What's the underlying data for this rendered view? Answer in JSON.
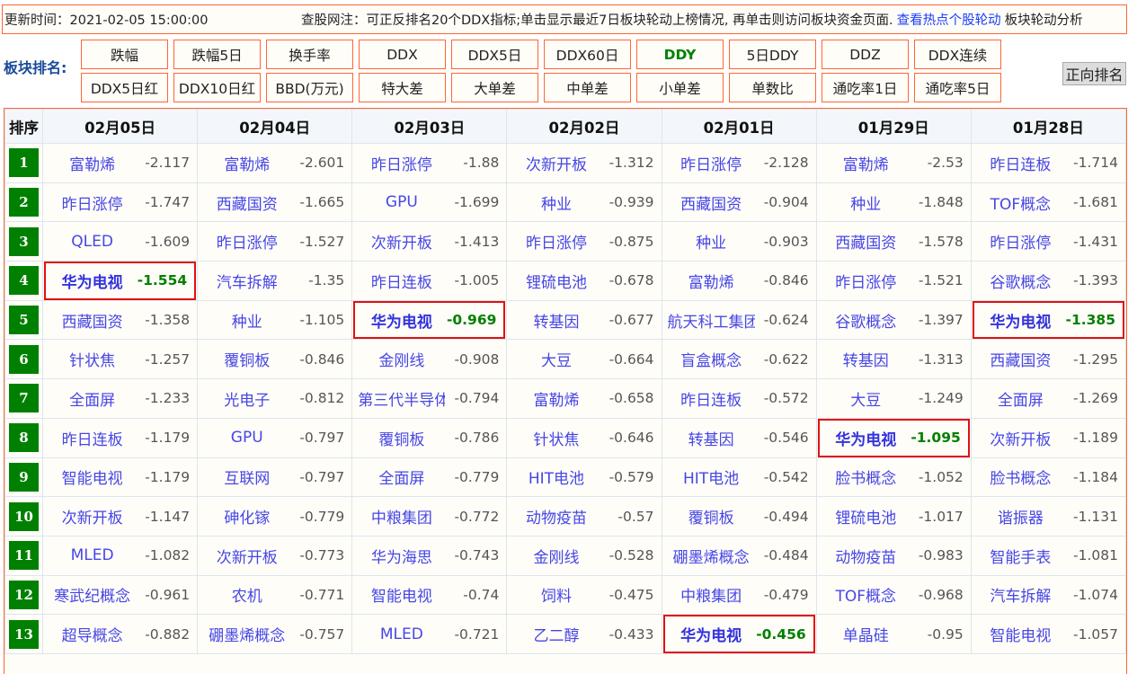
{
  "topbar": {
    "update_time": "更新时间：2021-02-05 15:00:00",
    "note": "查股网注：可正反排名20个DDX指标;单击显示最近7日板块轮动上榜情况, 再单击则访问板块资金页面.",
    "link": "查看热点个股轮动",
    "tail": "板块轮动分析"
  },
  "ranking_label": "板块排名:",
  "buttons": [
    "跌幅",
    "跌幅5日",
    "换手率",
    "DDX",
    "DDX5日",
    "DDX60日",
    "DDY",
    "5日DDY",
    "DDZ",
    "DDX连续",
    "DDX5日红",
    "DDX10日红",
    "BBD(万元)",
    "特大差",
    "大单差",
    "中单差",
    "小单差",
    "单数比",
    "通吃率1日",
    "通吃率5日"
  ],
  "active_button": "DDY",
  "reverse_button": "正向排名",
  "table": {
    "rank_header": "排序",
    "dates": [
      "02月05日",
      "02月04日",
      "02月03日",
      "02月02日",
      "02月01日",
      "01月29日",
      "01月28日"
    ],
    "highlight": "华为电视",
    "rows": [
      [
        [
          "富勒烯",
          "-2.117"
        ],
        [
          "富勒烯",
          "-2.601"
        ],
        [
          "昨日涨停",
          "-1.88"
        ],
        [
          "次新开板",
          "-1.312"
        ],
        [
          "昨日涨停",
          "-2.128"
        ],
        [
          "富勒烯",
          "-2.53"
        ],
        [
          "昨日连板",
          "-1.714"
        ]
      ],
      [
        [
          "昨日涨停",
          "-1.747"
        ],
        [
          "西藏国资",
          "-1.665"
        ],
        [
          "GPU",
          "-1.699"
        ],
        [
          "种业",
          "-0.939"
        ],
        [
          "西藏国资",
          "-0.904"
        ],
        [
          "种业",
          "-1.848"
        ],
        [
          "TOF概念",
          "-1.681"
        ]
      ],
      [
        [
          "QLED",
          "-1.609"
        ],
        [
          "昨日涨停",
          "-1.527"
        ],
        [
          "次新开板",
          "-1.413"
        ],
        [
          "昨日涨停",
          "-0.875"
        ],
        [
          "种业",
          "-0.903"
        ],
        [
          "西藏国资",
          "-1.578"
        ],
        [
          "昨日涨停",
          "-1.431"
        ]
      ],
      [
        [
          "华为电视",
          "-1.554"
        ],
        [
          "汽车拆解",
          "-1.35"
        ],
        [
          "昨日连板",
          "-1.005"
        ],
        [
          "锂硫电池",
          "-0.678"
        ],
        [
          "富勒烯",
          "-0.846"
        ],
        [
          "昨日涨停",
          "-1.521"
        ],
        [
          "谷歌概念",
          "-1.393"
        ]
      ],
      [
        [
          "西藏国资",
          "-1.358"
        ],
        [
          "种业",
          "-1.105"
        ],
        [
          "华为电视",
          "-0.969"
        ],
        [
          "转基因",
          "-0.677"
        ],
        [
          "航天科工集团",
          "-0.624"
        ],
        [
          "谷歌概念",
          "-1.397"
        ],
        [
          "华为电视",
          "-1.385"
        ]
      ],
      [
        [
          "针状焦",
          "-1.257"
        ],
        [
          "覆铜板",
          "-0.846"
        ],
        [
          "金刚线",
          "-0.908"
        ],
        [
          "大豆",
          "-0.664"
        ],
        [
          "盲盒概念",
          "-0.622"
        ],
        [
          "转基因",
          "-1.313"
        ],
        [
          "西藏国资",
          "-1.295"
        ]
      ],
      [
        [
          "全面屏",
          "-1.233"
        ],
        [
          "光电子",
          "-0.812"
        ],
        [
          "第三代半导体",
          "-0.794"
        ],
        [
          "富勒烯",
          "-0.658"
        ],
        [
          "昨日连板",
          "-0.572"
        ],
        [
          "大豆",
          "-1.249"
        ],
        [
          "全面屏",
          "-1.269"
        ]
      ],
      [
        [
          "昨日连板",
          "-1.179"
        ],
        [
          "GPU",
          "-0.797"
        ],
        [
          "覆铜板",
          "-0.786"
        ],
        [
          "针状焦",
          "-0.646"
        ],
        [
          "转基因",
          "-0.546"
        ],
        [
          "华为电视",
          "-1.095"
        ],
        [
          "次新开板",
          "-1.189"
        ]
      ],
      [
        [
          "智能电视",
          "-1.179"
        ],
        [
          "互联网",
          "-0.797"
        ],
        [
          "全面屏",
          "-0.779"
        ],
        [
          "HIT电池",
          "-0.579"
        ],
        [
          "HIT电池",
          "-0.542"
        ],
        [
          "脸书概念",
          "-1.052"
        ],
        [
          "脸书概念",
          "-1.184"
        ]
      ],
      [
        [
          "次新开板",
          "-1.147"
        ],
        [
          "砷化镓",
          "-0.779"
        ],
        [
          "中粮集团",
          "-0.772"
        ],
        [
          "动物疫苗",
          "-0.57"
        ],
        [
          "覆铜板",
          "-0.494"
        ],
        [
          "锂硫电池",
          "-1.017"
        ],
        [
          "谐振器",
          "-1.131"
        ]
      ],
      [
        [
          "MLED",
          "-1.082"
        ],
        [
          "次新开板",
          "-0.773"
        ],
        [
          "华为海思",
          "-0.743"
        ],
        [
          "金刚线",
          "-0.528"
        ],
        [
          "硼墨烯概念",
          "-0.484"
        ],
        [
          "动物疫苗",
          "-0.983"
        ],
        [
          "智能手表",
          "-1.081"
        ]
      ],
      [
        [
          "寒武纪概念",
          "-0.961"
        ],
        [
          "农机",
          "-0.771"
        ],
        [
          "智能电视",
          "-0.74"
        ],
        [
          "饲料",
          "-0.475"
        ],
        [
          "中粮集团",
          "-0.479"
        ],
        [
          "TOF概念",
          "-0.968"
        ],
        [
          "汽车拆解",
          "-1.074"
        ]
      ],
      [
        [
          "超导概念",
          "-0.882"
        ],
        [
          "硼墨烯概念",
          "-0.757"
        ],
        [
          "MLED",
          "-0.721"
        ],
        [
          "乙二醇",
          "-0.433"
        ],
        [
          "华为电视",
          "-0.456"
        ],
        [
          "单晶硅",
          "-0.95"
        ],
        [
          "智能电视",
          "-1.057"
        ]
      ]
    ]
  }
}
